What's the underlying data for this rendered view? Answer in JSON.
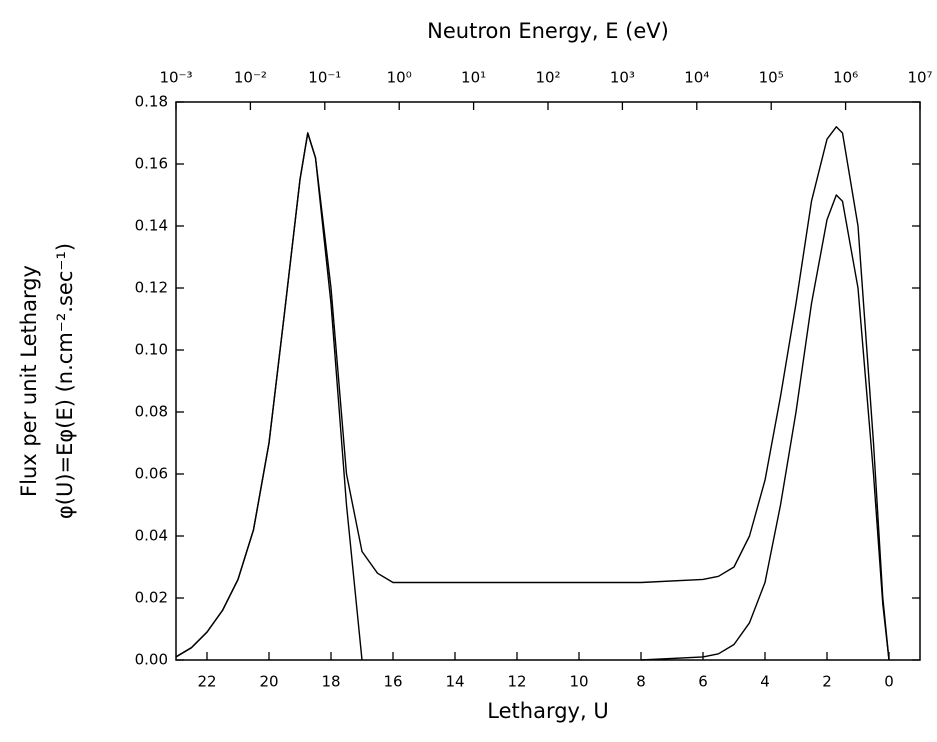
{
  "chart_data": {
    "type": "line",
    "title": "Neutron Energy, E (eV)",
    "xlabel": "Lethargy, U",
    "ylabel": [
      "Flux per unit Lethargy",
      "φ(U)=Eφ(E) (n.cm⁻².sec⁻¹)"
    ],
    "x": [
      23,
      22.5,
      22,
      21.5,
      21,
      20.5,
      20,
      19.5,
      19,
      18.75,
      18.5,
      18,
      17.5,
      17,
      16.5,
      16,
      14,
      12,
      10,
      8,
      6,
      5.5,
      5,
      4.5,
      4,
      3.5,
      3,
      2.5,
      2,
      1.7,
      1.5,
      1,
      0.5,
      0.2,
      0
    ],
    "series": [
      {
        "color": "#000000",
        "values": [
          0.001,
          0.004,
          0.009,
          0.016,
          0.026,
          0.042,
          0.07,
          0.112,
          0.155,
          0.17,
          0.162,
          0.12,
          0.06,
          0.035,
          0.028,
          0.025,
          0.025,
          0.025,
          0.025,
          0.025,
          0.026,
          0.027,
          0.03,
          0.04,
          0.058,
          0.085,
          0.115,
          0.148,
          0.168,
          0.172,
          0.17,
          0.14,
          0.07,
          0.02,
          0
        ]
      },
      {
        "color": "#000000",
        "values": [
          0.001,
          0.004,
          0.009,
          0.016,
          0.026,
          0.042,
          0.07,
          0.112,
          0.155,
          0.17,
          0.162,
          0.115,
          0.05,
          0,
          null,
          null,
          null,
          null,
          null,
          null,
          null,
          null,
          null,
          null,
          null,
          null,
          null,
          null,
          null,
          null,
          null,
          null,
          null,
          null,
          null
        ]
      },
      {
        "color": "#000000",
        "values": [
          null,
          null,
          null,
          null,
          null,
          null,
          null,
          null,
          null,
          null,
          null,
          null,
          null,
          null,
          null,
          null,
          null,
          null,
          null,
          0,
          0.001,
          0.002,
          0.005,
          0.012,
          0.025,
          0.05,
          0.08,
          0.115,
          0.142,
          0.15,
          0.148,
          0.12,
          0.06,
          0.018,
          0
        ]
      }
    ],
    "xlim": [
      23,
      -1
    ],
    "xticks": [
      22,
      20,
      18,
      16,
      14,
      12,
      10,
      8,
      6,
      4,
      2,
      0
    ],
    "x2lim": [
      0.001,
      10000000
    ],
    "x2scale": "log",
    "x2ticks": [
      {
        "value": 0.001,
        "label": "10⁻³"
      },
      {
        "value": 0.01,
        "label": "10⁻²"
      },
      {
        "value": 0.1,
        "label": "10⁻¹"
      },
      {
        "value": 1,
        "label": "10⁰"
      },
      {
        "value": 10,
        "label": "10¹"
      },
      {
        "value": 100,
        "label": "10²"
      },
      {
        "value": 1000,
        "label": "10³"
      },
      {
        "value": 10000,
        "label": "10⁴"
      },
      {
        "value": 100000,
        "label": "10⁵"
      },
      {
        "value": 1000000,
        "label": "10⁶"
      },
      {
        "value": 10000000,
        "label": "10⁷"
      }
    ],
    "ylim": [
      0,
      0.18
    ],
    "yticks": [
      {
        "value": 0,
        "label": "0.00"
      },
      {
        "value": 0.02,
        "label": "0.02"
      },
      {
        "value": 0.04,
        "label": "0.04"
      },
      {
        "value": 0.06,
        "label": "0.06"
      },
      {
        "value": 0.08,
        "label": "0.08"
      },
      {
        "value": 0.1,
        "label": "0.10"
      },
      {
        "value": 0.12,
        "label": "0.12"
      },
      {
        "value": 0.14,
        "label": "0.14"
      },
      {
        "value": 0.16,
        "label": "0.16"
      },
      {
        "value": 0.18,
        "label": "0.18"
      }
    ],
    "grid": false
  }
}
